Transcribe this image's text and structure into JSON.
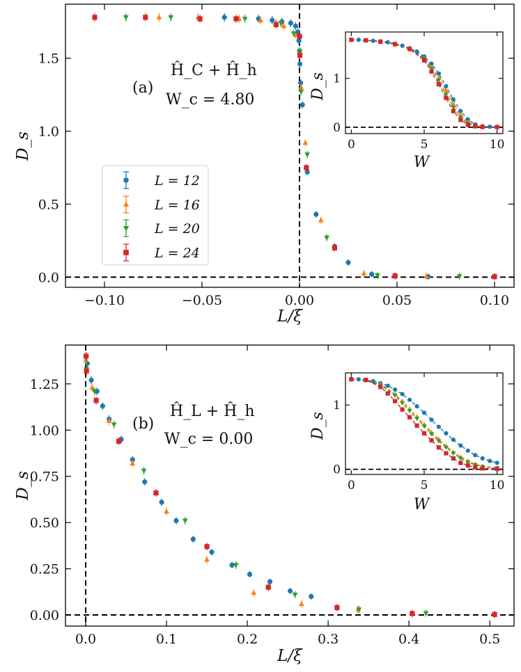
{
  "figure": {
    "colors": {
      "L12": "#1f77b4",
      "L16": "#ff7f0e",
      "L20": "#2ca02c",
      "L24": "#d62728"
    },
    "legend_labels": [
      "L = 12",
      "L = 16",
      "L = 20",
      "L = 24"
    ]
  },
  "chart_data": [
    {
      "id": "a",
      "type": "scatter",
      "panel_label": "(a)",
      "hamiltonian": "Ĥ_C + Ĥ_h",
      "critical": "W_c = 4.80",
      "xlabel": "L/ξ",
      "ylabel": "D_s",
      "xlim": [
        -0.12,
        0.11
      ],
      "ylim": [
        -0.07,
        1.87
      ],
      "xticks": [
        -0.1,
        -0.05,
        0.0,
        0.05,
        0.1
      ],
      "xtick_labels": [
        "−0.10",
        "−0.05",
        "0.00",
        "0.05",
        "0.10"
      ],
      "yticks": [
        0.0,
        0.5,
        1.0,
        1.5
      ],
      "ytick_labels": [
        "0.0",
        "0.5",
        "1.0",
        "1.5"
      ],
      "reference_lines": {
        "x": 0,
        "y": 0
      },
      "legend": "center-left",
      "series": [
        {
          "name": "L = 12",
          "marker": "circle",
          "x": [
            -0.0385,
            -0.021,
            -0.014,
            -0.009,
            -0.0045,
            -0.002,
            -0.0008,
            -0.0003,
            0.0,
            0.0002,
            0.0006,
            0.0015,
            0.004,
            0.0085,
            0.018,
            0.025,
            0.037,
            0.049,
            0.066
          ],
          "y": [
            1.78,
            1.77,
            1.76,
            1.75,
            1.74,
            1.72,
            1.68,
            1.62,
            1.55,
            1.46,
            1.33,
            1.18,
            0.72,
            0.43,
            0.21,
            0.1,
            0.02,
            0.006,
            0.003
          ]
        },
        {
          "name": "L = 16",
          "marker": "triangle-up",
          "x": [
            -0.072,
            -0.052,
            -0.031,
            -0.02,
            -0.012,
            -0.008,
            -0.002,
            0.0,
            0.0008,
            0.003,
            0.011,
            0.033,
            0.065
          ],
          "y": [
            1.78,
            1.78,
            1.77,
            1.76,
            1.74,
            1.72,
            1.66,
            1.54,
            1.3,
            0.92,
            0.39,
            0.025,
            0.005
          ]
        },
        {
          "name": "L = 20",
          "marker": "triangle-down",
          "x": [
            -0.089,
            -0.066,
            -0.028,
            -0.0095,
            -0.003,
            0.0,
            0.0008,
            0.004,
            0.014,
            0.04,
            0.082
          ],
          "y": [
            1.78,
            1.78,
            1.77,
            1.74,
            1.67,
            1.55,
            1.27,
            0.84,
            0.27,
            0.012,
            0.005
          ]
        },
        {
          "name": "L = 24",
          "marker": "square",
          "x": [
            -0.105,
            -0.079,
            -0.051,
            -0.0325,
            -0.012,
            0.0,
            0.0002,
            0.0035,
            0.018,
            0.049,
            0.1
          ],
          "y": [
            1.78,
            1.78,
            1.77,
            1.77,
            1.73,
            1.65,
            1.52,
            0.75,
            0.2,
            0.008,
            0.003
          ]
        }
      ],
      "inset": {
        "xlabel": "W",
        "ylabel": "D_s",
        "xlim": [
          -0.4,
          10.4
        ],
        "ylim": [
          -0.13,
          1.95
        ],
        "xticks": [
          0,
          5,
          10
        ],
        "xtick_labels": [
          "0",
          "5",
          "10"
        ],
        "yticks": [
          0,
          1
        ],
        "ytick_labels": [
          "0",
          "1"
        ],
        "series": [
          {
            "name": "L = 12",
            "marker": "circle",
            "x": [
              0,
              0.5,
              1,
              1.5,
              2,
              2.5,
              3,
              3.5,
              4,
              4.5,
              5,
              5.5,
              6,
              6.5,
              7,
              7.5,
              8,
              8.5,
              9,
              9.5,
              10
            ],
            "y": [
              1.79,
              1.79,
              1.78,
              1.77,
              1.76,
              1.74,
              1.71,
              1.67,
              1.62,
              1.55,
              1.45,
              1.3,
              1.1,
              0.84,
              0.57,
              0.33,
              0.16,
              0.06,
              0.02,
              0.01,
              0.01
            ]
          },
          {
            "name": "L = 16",
            "marker": "triangle-up",
            "x": [
              0,
              1,
              2,
              3,
              4,
              5,
              5.5,
              6,
              6.5,
              7,
              7.5,
              8,
              8.5,
              9,
              10
            ],
            "y": [
              1.79,
              1.78,
              1.76,
              1.71,
              1.62,
              1.42,
              1.24,
              1.02,
              0.76,
              0.48,
              0.26,
              0.11,
              0.04,
              0.01,
              0.005
            ]
          },
          {
            "name": "L = 20",
            "marker": "triangle-down",
            "x": [
              0,
              1,
              2,
              3,
              4,
              5,
              5.5,
              6,
              6.5,
              7,
              7.5,
              8,
              8.5,
              9,
              10
            ],
            "y": [
              1.79,
              1.78,
              1.76,
              1.71,
              1.61,
              1.4,
              1.2,
              0.96,
              0.68,
              0.41,
              0.2,
              0.08,
              0.03,
              0.01,
              0.005
            ]
          },
          {
            "name": "L = 24",
            "marker": "square",
            "x": [
              0,
              1,
              2,
              3,
              4,
              5,
              5.5,
              6,
              6.5,
              7,
              7.5,
              8,
              8.5,
              9,
              10
            ],
            "y": [
              1.79,
              1.78,
              1.75,
              1.7,
              1.6,
              1.37,
              1.14,
              0.88,
              0.6,
              0.33,
              0.15,
              0.05,
              0.02,
              0.005,
              0.003
            ]
          }
        ]
      }
    },
    {
      "id": "b",
      "type": "scatter",
      "panel_label": "(b)",
      "hamiltonian": "Ĥ_L + Ĥ_h",
      "critical": "W_c = 0.00",
      "xlabel": "L/ξ",
      "ylabel": "D_s",
      "xlim": [
        -0.025,
        0.53
      ],
      "ylim": [
        -0.06,
        1.46
      ],
      "xticks": [
        0.0,
        0.1,
        0.2,
        0.3,
        0.4,
        0.5
      ],
      "xtick_labels": [
        "0.0",
        "0.1",
        "0.2",
        "0.3",
        "0.4",
        "0.5"
      ],
      "yticks": [
        0.0,
        0.25,
        0.5,
        0.75,
        1.0,
        1.25
      ],
      "ytick_labels": [
        "0.00",
        "0.25",
        "0.50",
        "0.75",
        "1.00",
        "1.25"
      ],
      "reference_lines": {
        "x": 0,
        "y": 0
      },
      "legend": "none",
      "series": [
        {
          "name": "L = 12",
          "marker": "circle",
          "x": [
            0.0005,
            0.002,
            0.007,
            0.014,
            0.021,
            0.029,
            0.044,
            0.058,
            0.073,
            0.094,
            0.112,
            0.133,
            0.156,
            0.181,
            0.203,
            0.228,
            0.253,
            0.279
          ],
          "y": [
            1.4,
            1.36,
            1.27,
            1.21,
            1.13,
            1.06,
            0.95,
            0.84,
            0.72,
            0.61,
            0.51,
            0.41,
            0.34,
            0.27,
            0.22,
            0.18,
            0.13,
            0.1
          ]
        },
        {
          "name": "L = 16",
          "marker": "triangle-up",
          "x": [
            0.0004,
            0.008,
            0.029,
            0.058,
            0.1,
            0.15,
            0.208,
            0.267,
            0.337
          ],
          "y": [
            1.38,
            1.23,
            1.05,
            0.82,
            0.56,
            0.3,
            0.12,
            0.06,
            0.03
          ]
        },
        {
          "name": "L = 20",
          "marker": "triangle-down",
          "x": [
            0.0005,
            0.001,
            0.011,
            0.035,
            0.072,
            0.123,
            0.186,
            0.259,
            0.338,
            0.421
          ],
          "y": [
            1.39,
            1.33,
            1.21,
            1.03,
            0.78,
            0.51,
            0.27,
            0.11,
            0.03,
            0.01
          ]
        },
        {
          "name": "L = 24",
          "marker": "square",
          "x": [
            0.0005,
            0.001,
            0.013,
            0.041,
            0.087,
            0.15,
            0.226,
            0.311,
            0.404,
            0.506
          ],
          "y": [
            1.4,
            1.32,
            1.16,
            0.94,
            0.66,
            0.37,
            0.15,
            0.04,
            0.008,
            0.003
          ]
        }
      ],
      "inset": {
        "xlabel": "W",
        "ylabel": "D_s",
        "xlim": [
          -0.4,
          10.4
        ],
        "ylim": [
          -0.08,
          1.5
        ],
        "xticks": [
          0,
          5,
          10
        ],
        "xtick_labels": [
          "0",
          "5",
          "10"
        ],
        "yticks": [
          0,
          1
        ],
        "ytick_labels": [
          "0",
          "1"
        ],
        "series": [
          {
            "name": "L = 12",
            "marker": "circle",
            "x": [
              0,
              0.5,
              1,
              1.5,
              2,
              2.5,
              3,
              3.5,
              4,
              4.5,
              5,
              5.5,
              6,
              6.5,
              7,
              7.5,
              8,
              8.5,
              9,
              9.5,
              10
            ],
            "y": [
              1.4,
              1.4,
              1.39,
              1.37,
              1.34,
              1.3,
              1.24,
              1.17,
              1.08,
              0.98,
              0.88,
              0.77,
              0.66,
              0.56,
              0.46,
              0.37,
              0.29,
              0.22,
              0.17,
              0.13,
              0.1
            ]
          },
          {
            "name": "L = 16",
            "marker": "triangle-up",
            "x": [
              0,
              1,
              2,
              3,
              3.5,
              4,
              4.5,
              5,
              5.5,
              6,
              6.5,
              7,
              7.5,
              8,
              8.5,
              9,
              10
            ],
            "y": [
              1.4,
              1.39,
              1.33,
              1.17,
              1.06,
              0.94,
              0.82,
              0.7,
              0.58,
              0.47,
              0.36,
              0.27,
              0.19,
              0.13,
              0.08,
              0.05,
              0.02
            ]
          },
          {
            "name": "L = 20",
            "marker": "triangle-down",
            "x": [
              0,
              1,
              2,
              3,
              3.5,
              4,
              4.5,
              5,
              5.5,
              6,
              6.5,
              7,
              7.5,
              8,
              8.5,
              9,
              10
            ],
            "y": [
              1.4,
              1.38,
              1.31,
              1.15,
              1.03,
              0.91,
              0.79,
              0.67,
              0.55,
              0.44,
              0.34,
              0.25,
              0.17,
              0.11,
              0.07,
              0.04,
              0.02
            ]
          },
          {
            "name": "L = 24",
            "marker": "square",
            "x": [
              0,
              1,
              2,
              2.5,
              3,
              3.5,
              4,
              4.5,
              5,
              5.5,
              6,
              6.5,
              7,
              7.5,
              8,
              8.5,
              9,
              10
            ],
            "y": [
              1.4,
              1.39,
              1.28,
              1.18,
              1.06,
              0.93,
              0.81,
              0.68,
              0.56,
              0.45,
              0.34,
              0.25,
              0.17,
              0.1,
              0.06,
              0.03,
              0.015,
              0.005
            ]
          }
        ]
      }
    }
  ]
}
